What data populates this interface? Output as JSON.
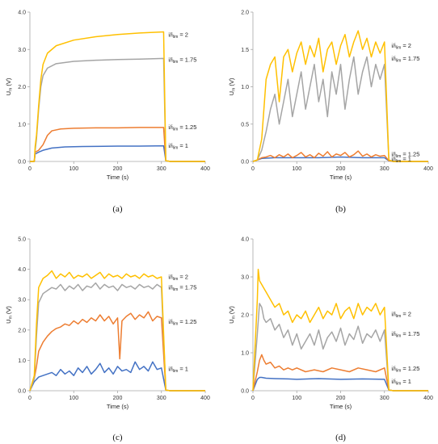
{
  "colors": {
    "i1": "#4472c4",
    "i125": "#ed7d31",
    "i175": "#a5a5a5",
    "i2": "#ffc000",
    "axis": "#a6a6a6"
  },
  "chart_data": [
    {
      "id": "a",
      "panel_label": "(a)",
      "type": "line",
      "xlabel": "Time (s)",
      "ylabel": "Um (V)",
      "xlim": [
        0,
        400
      ],
      "ylim": [
        0,
        4
      ],
      "xticks": [
        "0",
        "100",
        "200",
        "300",
        "400"
      ],
      "yticks": [
        "0.0",
        "1.0",
        "2.0",
        "3.0",
        "4.0"
      ],
      "legend": "inline-right",
      "series": [
        {
          "name": "i/ilim = 1",
          "color_key": "i1",
          "label_y": 0.42,
          "x": [
            0,
            10,
            12,
            20,
            30,
            50,
            80,
            120,
            200,
            250,
            305,
            310,
            320,
            400
          ],
          "y": [
            0,
            0,
            0.2,
            0.25,
            0.3,
            0.36,
            0.39,
            0.4,
            0.41,
            0.41,
            0.42,
            0.02,
            0.0,
            0.0
          ]
        },
        {
          "name": "i/ilim = 1.25",
          "color_key": "i125",
          "label_y": 0.92,
          "x": [
            0,
            10,
            12,
            20,
            30,
            40,
            50,
            70,
            100,
            150,
            200,
            250,
            305,
            310,
            320,
            400
          ],
          "y": [
            0,
            0,
            0.25,
            0.3,
            0.45,
            0.7,
            0.82,
            0.87,
            0.89,
            0.9,
            0.9,
            0.91,
            0.91,
            0.02,
            0.0,
            0.0
          ]
        },
        {
          "name": "i/ilim = 1.75",
          "color_key": "i175",
          "label_y": 2.72,
          "x": [
            0,
            10,
            12,
            15,
            20,
            25,
            30,
            40,
            60,
            100,
            150,
            200,
            250,
            305,
            310,
            320,
            400
          ],
          "y": [
            0,
            0,
            0.3,
            0.6,
            1.4,
            2.0,
            2.3,
            2.5,
            2.62,
            2.68,
            2.71,
            2.73,
            2.74,
            2.76,
            0.02,
            0.0,
            0.0
          ]
        },
        {
          "name": "i/ilim = 2",
          "color_key": "i2",
          "label_y": 3.4,
          "x": [
            0,
            10,
            12,
            15,
            20,
            25,
            30,
            40,
            60,
            100,
            150,
            200,
            250,
            305,
            310,
            320,
            400
          ],
          "y": [
            0,
            0,
            0.4,
            0.7,
            1.5,
            2.2,
            2.6,
            2.9,
            3.1,
            3.25,
            3.34,
            3.4,
            3.44,
            3.47,
            0.02,
            0.0,
            0.0
          ]
        }
      ]
    },
    {
      "id": "b",
      "panel_label": "(b)",
      "type": "line",
      "xlabel": "Time (s)",
      "ylabel": "Um (V)",
      "xlim": [
        0,
        400
      ],
      "ylim": [
        0,
        2
      ],
      "xticks": [
        "0",
        "100",
        "200",
        "300",
        "400"
      ],
      "yticks": [
        "0.0",
        "0.5",
        "1.0",
        "1.5",
        "2.0"
      ],
      "legend": "inline-right",
      "series": [
        {
          "name": "i/ilim = 1",
          "color_key": "i1",
          "label_y": 0.03,
          "x": [
            0,
            10,
            20,
            50,
            100,
            150,
            200,
            250,
            300,
            310,
            320,
            400
          ],
          "y": [
            0,
            0.02,
            0.04,
            0.05,
            0.05,
            0.05,
            0.06,
            0.05,
            0.05,
            0.01,
            0.0,
            0.0
          ]
        },
        {
          "name": "i/ilim = 1.25",
          "color_key": "i125",
          "label_y": 0.1,
          "x": [
            0,
            10,
            20,
            30,
            40,
            50,
            60,
            70,
            80,
            90,
            100,
            110,
            120,
            130,
            140,
            150,
            160,
            170,
            180,
            190,
            200,
            210,
            220,
            230,
            240,
            250,
            260,
            270,
            280,
            290,
            300,
            310,
            320,
            400
          ],
          "y": [
            0,
            0.02,
            0.05,
            0.06,
            0.08,
            0.05,
            0.09,
            0.06,
            0.1,
            0.05,
            0.08,
            0.12,
            0.06,
            0.09,
            0.05,
            0.11,
            0.07,
            0.13,
            0.06,
            0.1,
            0.08,
            0.12,
            0.06,
            0.09,
            0.14,
            0.07,
            0.1,
            0.06,
            0.09,
            0.07,
            0.08,
            0.01,
            0.0,
            0.0
          ]
        },
        {
          "name": "i/ilim = 1.75",
          "color_key": "i175",
          "label_y": 1.38,
          "x": [
            0,
            10,
            20,
            30,
            40,
            50,
            60,
            70,
            80,
            90,
            100,
            110,
            120,
            130,
            140,
            150,
            160,
            170,
            180,
            190,
            200,
            210,
            220,
            230,
            240,
            250,
            260,
            270,
            280,
            290,
            300,
            310,
            320,
            400
          ],
          "y": [
            0,
            0.02,
            0.15,
            0.4,
            0.7,
            0.9,
            0.5,
            0.8,
            1.1,
            0.6,
            0.9,
            1.2,
            0.7,
            1.0,
            1.3,
            0.8,
            1.1,
            0.6,
            1.2,
            0.9,
            1.3,
            0.7,
            1.1,
            1.4,
            0.9,
            1.2,
            1.4,
            1.0,
            1.3,
            1.1,
            1.3,
            0.02,
            0.0,
            0.0
          ]
        },
        {
          "name": "i/ilim = 2",
          "color_key": "i2",
          "label_y": 1.55,
          "x": [
            0,
            10,
            20,
            30,
            40,
            50,
            60,
            70,
            80,
            90,
            100,
            110,
            120,
            130,
            140,
            150,
            160,
            170,
            180,
            190,
            200,
            210,
            220,
            230,
            240,
            250,
            260,
            270,
            280,
            290,
            300,
            310,
            320,
            400
          ],
          "y": [
            0,
            0.02,
            0.3,
            1.1,
            1.3,
            1.4,
            0.8,
            1.4,
            1.5,
            1.2,
            1.45,
            1.6,
            1.3,
            1.55,
            1.4,
            1.65,
            1.2,
            1.5,
            1.6,
            1.3,
            1.55,
            1.7,
            1.4,
            1.6,
            1.75,
            1.5,
            1.65,
            1.4,
            1.6,
            1.45,
            1.6,
            0.02,
            0.0,
            0.0
          ]
        }
      ]
    },
    {
      "id": "c",
      "panel_label": "(c)",
      "type": "line",
      "xlabel": "Time (s)",
      "ylabel": "Um (V)",
      "xlim": [
        0,
        400
      ],
      "ylim": [
        0,
        5
      ],
      "xticks": [
        "0",
        "100",
        "200",
        "300",
        "400"
      ],
      "yticks": [
        "0.0",
        "1.0",
        "2.0",
        "3.0",
        "4.0",
        "5.0"
      ],
      "legend": "inline-right",
      "series": [
        {
          "name": "i/ilim = 1",
          "color_key": "i1",
          "label_y": 0.72,
          "x": [
            0,
            10,
            20,
            30,
            40,
            50,
            60,
            70,
            80,
            90,
            100,
            110,
            120,
            130,
            140,
            150,
            160,
            170,
            180,
            190,
            200,
            210,
            220,
            230,
            240,
            250,
            260,
            270,
            280,
            290,
            300,
            310,
            320,
            400
          ],
          "y": [
            0,
            0.3,
            0.45,
            0.5,
            0.55,
            0.6,
            0.5,
            0.7,
            0.55,
            0.65,
            0.5,
            0.75,
            0.6,
            0.8,
            0.55,
            0.7,
            0.9,
            0.6,
            0.75,
            0.55,
            0.8,
            0.65,
            0.7,
            0.6,
            0.95,
            0.7,
            0.8,
            0.65,
            0.95,
            0.7,
            0.75,
            0.02,
            0.0,
            0.0
          ]
        },
        {
          "name": "i/ilim = 1.25",
          "color_key": "i125",
          "label_y": 2.28,
          "x": [
            0,
            10,
            15,
            20,
            30,
            40,
            50,
            60,
            70,
            80,
            90,
            100,
            110,
            120,
            130,
            140,
            150,
            160,
            170,
            180,
            190,
            200,
            205,
            210,
            220,
            230,
            240,
            250,
            260,
            270,
            280,
            290,
            300,
            310,
            320,
            400
          ],
          "y": [
            0,
            0.4,
            0.8,
            1.3,
            1.6,
            1.8,
            1.95,
            2.05,
            2.1,
            2.2,
            2.15,
            2.3,
            2.2,
            2.35,
            2.25,
            2.4,
            2.3,
            2.5,
            2.3,
            2.45,
            2.2,
            2.4,
            1.05,
            2.3,
            2.45,
            2.55,
            2.35,
            2.5,
            2.4,
            2.6,
            2.3,
            2.45,
            2.4,
            0.02,
            0.0,
            0.0
          ]
        },
        {
          "name": "i/ilim = 1.75",
          "color_key": "i175",
          "label_y": 3.4,
          "x": [
            0,
            10,
            15,
            20,
            30,
            40,
            50,
            60,
            70,
            80,
            90,
            100,
            110,
            120,
            130,
            140,
            150,
            160,
            170,
            180,
            190,
            200,
            210,
            220,
            230,
            240,
            250,
            260,
            270,
            280,
            290,
            300,
            310,
            320,
            400
          ],
          "y": [
            0,
            0.4,
            1.8,
            2.9,
            3.2,
            3.3,
            3.4,
            3.35,
            3.5,
            3.3,
            3.45,
            3.35,
            3.5,
            3.3,
            3.45,
            3.4,
            3.55,
            3.35,
            3.5,
            3.4,
            3.45,
            3.3,
            3.5,
            3.4,
            3.45,
            3.35,
            3.5,
            3.4,
            3.45,
            3.35,
            3.5,
            3.4,
            0.02,
            0.0,
            0.0
          ]
        },
        {
          "name": "i/ilim = 2",
          "color_key": "i2",
          "label_y": 3.75,
          "x": [
            0,
            10,
            15,
            20,
            30,
            40,
            50,
            60,
            70,
            80,
            90,
            100,
            110,
            120,
            130,
            140,
            150,
            160,
            170,
            180,
            190,
            200,
            210,
            220,
            230,
            240,
            250,
            260,
            270,
            280,
            290,
            300,
            310,
            320,
            400
          ],
          "y": [
            0,
            0.5,
            2.2,
            3.4,
            3.7,
            3.8,
            3.95,
            3.7,
            3.85,
            3.75,
            3.9,
            3.7,
            3.8,
            3.75,
            3.85,
            3.7,
            3.8,
            3.9,
            3.7,
            3.85,
            3.75,
            3.8,
            3.7,
            3.85,
            3.75,
            3.8,
            3.7,
            3.85,
            3.75,
            3.8,
            3.7,
            3.75,
            0.02,
            0.0,
            0.0
          ]
        }
      ]
    },
    {
      "id": "d",
      "panel_label": "(d)",
      "type": "line",
      "xlabel": "Time (s)",
      "ylabel": "Um (V)",
      "xlim": [
        0,
        400
      ],
      "ylim": [
        0,
        4
      ],
      "xticks": [
        "0",
        "100",
        "200",
        "300",
        "400"
      ],
      "yticks": [
        "0.0",
        "1.0",
        "2.0",
        "3.0",
        "4.0"
      ],
      "legend": "inline-right",
      "series": [
        {
          "name": "i/ilim = 1",
          "color_key": "i1",
          "label_y": 0.25,
          "x": [
            0,
            10,
            15,
            20,
            30,
            50,
            80,
            100,
            150,
            200,
            250,
            300,
            310,
            320,
            400
          ],
          "y": [
            0,
            0.3,
            0.35,
            0.35,
            0.33,
            0.32,
            0.31,
            0.3,
            0.32,
            0.3,
            0.31,
            0.3,
            0.02,
            0.0,
            0.0
          ]
        },
        {
          "name": "i/ilim = 1.25",
          "color_key": "i125",
          "label_y": 0.58,
          "x": [
            0,
            10,
            15,
            20,
            25,
            30,
            40,
            50,
            60,
            70,
            80,
            90,
            100,
            120,
            140,
            160,
            180,
            200,
            220,
            240,
            260,
            280,
            300,
            310,
            320,
            400
          ],
          "y": [
            0,
            0.5,
            0.8,
            0.95,
            0.8,
            0.7,
            0.75,
            0.6,
            0.65,
            0.55,
            0.6,
            0.55,
            0.6,
            0.5,
            0.55,
            0.5,
            0.6,
            0.55,
            0.5,
            0.6,
            0.55,
            0.5,
            0.6,
            0.02,
            0.0,
            0.0
          ]
        },
        {
          "name": "i/ilim = 1.75",
          "color_key": "i175",
          "label_y": 1.5,
          "x": [
            0,
            10,
            15,
            20,
            25,
            30,
            40,
            50,
            60,
            70,
            80,
            90,
            100,
            110,
            120,
            130,
            140,
            150,
            160,
            170,
            180,
            190,
            200,
            210,
            220,
            230,
            240,
            250,
            260,
            270,
            280,
            290,
            300,
            310,
            320,
            400
          ],
          "y": [
            0,
            1.5,
            2.3,
            2.2,
            1.9,
            1.8,
            1.9,
            1.6,
            1.75,
            1.4,
            1.6,
            1.2,
            1.5,
            1.1,
            1.3,
            1.5,
            1.2,
            1.6,
            1.1,
            1.4,
            1.55,
            1.3,
            1.65,
            1.2,
            1.5,
            1.35,
            1.7,
            1.25,
            1.5,
            1.4,
            1.6,
            1.3,
            1.6,
            0.02,
            0.0,
            0.0
          ]
        },
        {
          "name": "i/ilim = 2",
          "color_key": "i2",
          "label_y": 2.02,
          "x": [
            0,
            10,
            12,
            15,
            20,
            25,
            30,
            40,
            50,
            60,
            70,
            80,
            90,
            100,
            110,
            120,
            130,
            140,
            150,
            160,
            170,
            180,
            190,
            200,
            210,
            220,
            230,
            240,
            250,
            260,
            270,
            280,
            290,
            300,
            310,
            320,
            400
          ],
          "y": [
            0,
            2.4,
            3.2,
            2.9,
            2.8,
            2.7,
            2.6,
            2.4,
            2.2,
            2.3,
            2.0,
            2.1,
            1.8,
            2.0,
            1.9,
            2.1,
            1.8,
            2.0,
            2.2,
            1.9,
            2.1,
            2.0,
            2.3,
            1.9,
            2.1,
            2.2,
            1.9,
            2.3,
            2.0,
            2.2,
            2.1,
            2.3,
            2.0,
            2.2,
            0.02,
            0.0,
            0.0
          ]
        }
      ]
    }
  ]
}
